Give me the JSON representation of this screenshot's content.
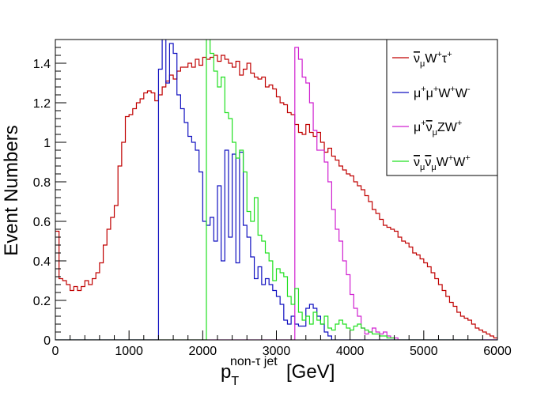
{
  "chart_data": {
    "type": "line",
    "style": "step-histogram",
    "title": "",
    "xlabel": {
      "base": "p",
      "sub": "T",
      "sup": "non-τ jet",
      "unit": "[GeV]"
    },
    "ylabel": "Event Numbers",
    "xlim": [
      0,
      6000
    ],
    "ylim": [
      0,
      1.52
    ],
    "bin_width": 50,
    "x_ticks": [
      0,
      1000,
      2000,
      3000,
      4000,
      5000,
      6000
    ],
    "x_tick_labels": [
      "0",
      "1000",
      "2000",
      "3000",
      "4000",
      "5000",
      "6000"
    ],
    "y_ticks": [
      0,
      0.2,
      0.4,
      0.6,
      0.8,
      1,
      1.2,
      1.4
    ],
    "y_tick_labels": [
      "0",
      "0.2",
      "0.4",
      "0.6",
      "0.8",
      "1",
      "1.2",
      "1.4"
    ],
    "grid": false,
    "legend_position": "top-right",
    "series": [
      {
        "name": "ν̄μW⁺τ⁺",
        "legend": {
          "parts": [
            [
              "ν",
              "bar"
            ],
            [
              "μ",
              "sub"
            ],
            [
              "W",
              ""
            ],
            [
              "+",
              "sup"
            ],
            [
              "τ",
              ""
            ],
            [
              "+",
              "sup"
            ]
          ]
        },
        "color": "#c00000",
        "values": [
          0.55,
          0.31,
          0.3,
          0.28,
          0.25,
          0.27,
          0.25,
          0.27,
          0.3,
          0.28,
          0.31,
          0.34,
          0.39,
          0.48,
          0.56,
          0.62,
          0.68,
          0.88,
          1.0,
          1.13,
          1.14,
          1.17,
          1.2,
          1.22,
          1.25,
          1.26,
          1.25,
          1.21,
          1.24,
          1.28,
          1.31,
          1.34,
          1.32,
          1.36,
          1.38,
          1.38,
          1.4,
          1.38,
          1.42,
          1.39,
          1.43,
          1.42,
          1.43,
          1.44,
          1.41,
          1.44,
          1.42,
          1.4,
          1.38,
          1.41,
          1.34,
          1.37,
          1.4,
          1.35,
          1.33,
          1.32,
          1.33,
          1.28,
          1.29,
          1.27,
          1.23,
          1.2,
          1.19,
          1.15,
          1.14,
          1.09,
          1.05,
          1.04,
          1.09,
          1.05,
          1.03,
          1.05,
          1.0,
          0.95,
          0.97,
          0.93,
          0.91,
          0.88,
          0.86,
          0.84,
          0.83,
          0.8,
          0.78,
          0.76,
          0.73,
          0.7,
          0.66,
          0.64,
          0.61,
          0.58,
          0.57,
          0.56,
          0.55,
          0.52,
          0.5,
          0.49,
          0.47,
          0.44,
          0.43,
          0.41,
          0.39,
          0.37,
          0.34,
          0.31,
          0.28,
          0.25,
          0.22,
          0.19,
          0.17,
          0.14,
          0.12,
          0.11,
          0.1,
          0.08,
          0.06,
          0.05,
          0.04,
          0.03,
          0.02,
          0.01
        ]
      },
      {
        "name": "μ⁺μ⁺W⁺W⁻",
        "legend": {
          "parts": [
            [
              "μ",
              ""
            ],
            [
              "+",
              "sup"
            ],
            [
              "μ",
              ""
            ],
            [
              "+",
              "sup"
            ],
            [
              "W",
              ""
            ],
            [
              "+",
              "sup"
            ],
            [
              "W",
              ""
            ],
            [
              "-",
              "sup"
            ]
          ]
        },
        "color": "#1010c0",
        "values": [
          0,
          0,
          0,
          0,
          0,
          0,
          0,
          0,
          0,
          0,
          0,
          0,
          0,
          0,
          0,
          0,
          0,
          0,
          0,
          0,
          0,
          0,
          0,
          0,
          0,
          0,
          0,
          0,
          1.37,
          1.6,
          1.3,
          1.5,
          1.45,
          1.24,
          1.17,
          1.1,
          1.03,
          1.0,
          0.96,
          0.85,
          0.6,
          0.58,
          0.62,
          0.5,
          0.78,
          0.4,
          0.96,
          0.52,
          0.94,
          0.39,
          0.95,
          0.58,
          0.52,
          0.42,
          0.31,
          0.37,
          0.28,
          0.31,
          0.28,
          0.25,
          0.22,
          0.18,
          0.1,
          0.08,
          0.12,
          0.08,
          0.07,
          0.07,
          0.16,
          0.18,
          0.16,
          0.12,
          0.08,
          0.04,
          0.02,
          0,
          0,
          0,
          0,
          0,
          0,
          0,
          0,
          0,
          0,
          0,
          0,
          0,
          0,
          0,
          0,
          0,
          0,
          0,
          0,
          0,
          0,
          0,
          0,
          0,
          0,
          0,
          0,
          0,
          0,
          0,
          0,
          0,
          0,
          0,
          0,
          0,
          0,
          0,
          0,
          0,
          0,
          0,
          0,
          0
        ]
      },
      {
        "name": "μ⁺ν̄μZW⁺",
        "legend": {
          "parts": [
            [
              "μ",
              ""
            ],
            [
              "+",
              "sup"
            ],
            [
              "ν",
              "bar"
            ],
            [
              "μ",
              "sub"
            ],
            [
              "Z",
              ""
            ],
            [
              "W",
              ""
            ],
            [
              "+",
              "sup"
            ]
          ]
        },
        "color": "#d020d0",
        "values": [
          0,
          0,
          0,
          0,
          0,
          0,
          0,
          0,
          0,
          0,
          0,
          0,
          0,
          0,
          0,
          0,
          0,
          0,
          0,
          0,
          0,
          0,
          0,
          0,
          0,
          0,
          0,
          0,
          0,
          0,
          0,
          0,
          0,
          0,
          0,
          0,
          0,
          0,
          0,
          0,
          0,
          0,
          0,
          0,
          0,
          0,
          0,
          0,
          0,
          0,
          0,
          0,
          0,
          0,
          0,
          0,
          0,
          0,
          0,
          0,
          0,
          0,
          0,
          0,
          0,
          1.48,
          1.42,
          1.33,
          1.3,
          1.2,
          1.06,
          0.96,
          0.96,
          0.9,
          0.8,
          0.66,
          0.56,
          0.5,
          0.4,
          0.33,
          0.23,
          0.16,
          0.12,
          0.06,
          0.03,
          0.04,
          0.06,
          0.04,
          0.03,
          0.04,
          0.02,
          0.01,
          0.01,
          0,
          0,
          0,
          0,
          0,
          0,
          0,
          0,
          0,
          0,
          0,
          0,
          0,
          0,
          0,
          0,
          0,
          0,
          0,
          0,
          0,
          0,
          0,
          0,
          0,
          0,
          0
        ]
      },
      {
        "name": "ν̄μν̄μW⁺W⁺",
        "legend": {
          "parts": [
            [
              "ν",
              "bar"
            ],
            [
              "μ",
              "sub"
            ],
            [
              "ν",
              "bar"
            ],
            [
              "μ",
              "sub"
            ],
            [
              "W",
              ""
            ],
            [
              "+",
              "sup"
            ],
            [
              "W",
              ""
            ],
            [
              "+",
              "sup"
            ]
          ]
        },
        "color": "#20e020",
        "values": [
          0,
          0,
          0,
          0,
          0,
          0,
          0,
          0,
          0,
          0,
          0,
          0,
          0,
          0,
          0,
          0,
          0,
          0,
          0,
          0,
          0,
          0,
          0,
          0,
          0,
          0,
          0,
          0,
          0,
          0,
          0,
          0,
          0,
          0,
          0,
          0,
          0,
          0,
          0,
          0,
          0,
          1.55,
          1.45,
          1.36,
          1.28,
          1.33,
          1.15,
          1.12,
          1.0,
          0.92,
          0.96,
          0.85,
          0.65,
          0.6,
          0.72,
          0.53,
          0.5,
          0.44,
          0.4,
          0.3,
          0.36,
          0.34,
          0.32,
          0.22,
          0.18,
          0.26,
          0.14,
          0.1,
          0.12,
          0.08,
          0.14,
          0.1,
          0.08,
          0.12,
          0.06,
          0.05,
          0.08,
          0.1,
          0.08,
          0.06,
          0.05,
          0.07,
          0.08,
          0.06,
          0.05,
          0.04,
          0.03,
          0.03,
          0.02,
          0.02,
          0.01,
          0.01,
          0,
          0,
          0,
          0,
          0,
          0,
          0,
          0,
          0,
          0,
          0,
          0,
          0,
          0,
          0,
          0,
          0,
          0,
          0,
          0,
          0,
          0,
          0,
          0
        ]
      }
    ]
  }
}
